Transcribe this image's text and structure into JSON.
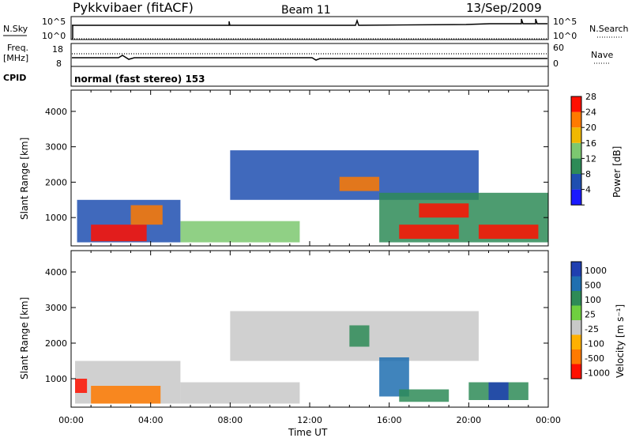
{
  "header": {
    "station": "Pykkvibaer (fitACF)",
    "beam": "Beam 11",
    "date": "13/Sep/2009"
  },
  "noise_panel": {
    "left_label": "N.Sky",
    "right_label": "N.Search",
    "left_ticks": [
      "10^5",
      "10^0"
    ],
    "right_ticks": [
      "10^5",
      "10^0"
    ]
  },
  "freq_panel": {
    "left_label_line1": "Freq.",
    "left_label_line2": "[MHz]",
    "right_label": "Nave",
    "left_ticks": [
      "18",
      "8"
    ],
    "right_ticks": [
      "60",
      "0"
    ]
  },
  "cpid": {
    "label": "CPID",
    "mode": "normal (fast stereo) 153"
  },
  "power_scale": {
    "label": "Power [dB]",
    "ticks": [
      "4",
      "8",
      "12",
      "16",
      "20",
      "24",
      "28"
    ],
    "colors": [
      "#1a1aff",
      "#1f4fb0",
      "#2e8b57",
      "#7cc870",
      "#f0b800",
      "#ff7a00",
      "#ff1000"
    ]
  },
  "velocity_scale": {
    "label": "Velocity [m s⁻¹]",
    "ticks": [
      "1000",
      "500",
      "100",
      "25",
      "-25",
      "-100",
      "-500",
      "-1000"
    ],
    "colors": [
      "#1f3fb0",
      "#1f6fb0",
      "#2e8b57",
      "#6fcf3f",
      "#c8c8c8",
      "#ffb000",
      "#ff7a00",
      "#ff1000"
    ]
  },
  "axes": {
    "ylabel": "Slant Range [km]",
    "xlabel": "Time UT",
    "yticks": [
      "1000",
      "2000",
      "3000",
      "4000"
    ],
    "xticks": [
      "00:00",
      "04:00",
      "08:00",
      "12:00",
      "16:00",
      "20:00",
      "00:00"
    ]
  },
  "chart_data": [
    {
      "type": "heatmap",
      "title": "",
      "xlabel": "Time UT",
      "ylabel": "Slant Range [km]",
      "xlim": [
        0,
        24
      ],
      "ylim": [
        200,
        4600
      ],
      "colorbar": "Power [dB]",
      "regions": [
        {
          "t0": 0.3,
          "t1": 5.5,
          "r0": 300,
          "r1": 1500,
          "level": 8
        },
        {
          "t0": 1.0,
          "t1": 3.8,
          "r0": 330,
          "r1": 800,
          "level": 28
        },
        {
          "t0": 3.0,
          "t1": 4.6,
          "r0": 800,
          "r1": 1350,
          "level": 24
        },
        {
          "t0": 5.5,
          "t1": 11.5,
          "r0": 300,
          "r1": 900,
          "level": 16
        },
        {
          "t0": 8.0,
          "t1": 20.5,
          "r0": 1500,
          "r1": 2900,
          "level": 8
        },
        {
          "t0": 13.5,
          "t1": 15.5,
          "r0": 1750,
          "r1": 2150,
          "level": 24
        },
        {
          "t0": 15.5,
          "t1": 24.0,
          "r0": 300,
          "r1": 1700,
          "level": 12
        },
        {
          "t0": 16.5,
          "t1": 19.5,
          "r0": 400,
          "r1": 800,
          "level": 28
        },
        {
          "t0": 20.5,
          "t1": 23.5,
          "r0": 400,
          "r1": 800,
          "level": 28
        },
        {
          "t0": 17.5,
          "t1": 20.0,
          "r0": 1000,
          "r1": 1400,
          "level": 28
        }
      ]
    },
    {
      "type": "heatmap",
      "title": "",
      "xlabel": "Time UT",
      "ylabel": "Slant Range [km]",
      "xlim": [
        0,
        24
      ],
      "ylim": [
        200,
        4600
      ],
      "colorbar": "Velocity [m s⁻¹]",
      "regions": [
        {
          "t0": 0.2,
          "t1": 5.5,
          "r0": 300,
          "r1": 1500,
          "level": 0
        },
        {
          "t0": 1.0,
          "t1": 4.5,
          "r0": 300,
          "r1": 800,
          "level": -100
        },
        {
          "t0": 0.2,
          "t1": 0.8,
          "r0": 600,
          "r1": 1000,
          "level": -500
        },
        {
          "t0": 5.5,
          "t1": 11.5,
          "r0": 300,
          "r1": 900,
          "level": 0
        },
        {
          "t0": 8.0,
          "t1": 20.5,
          "r0": 1500,
          "r1": 2900,
          "level": 0
        },
        {
          "t0": 14.0,
          "t1": 15.0,
          "r0": 1900,
          "r1": 2500,
          "level": 100
        },
        {
          "t0": 15.5,
          "t1": 17.0,
          "r0": 500,
          "r1": 1600,
          "level": 500
        },
        {
          "t0": 16.5,
          "t1": 19.0,
          "r0": 350,
          "r1": 700,
          "level": 100
        },
        {
          "t0": 20.0,
          "t1": 23.0,
          "r0": 400,
          "r1": 900,
          "level": 100
        },
        {
          "t0": 21.0,
          "t1": 22.0,
          "r0": 400,
          "r1": 900,
          "level": 1000
        }
      ]
    }
  ]
}
